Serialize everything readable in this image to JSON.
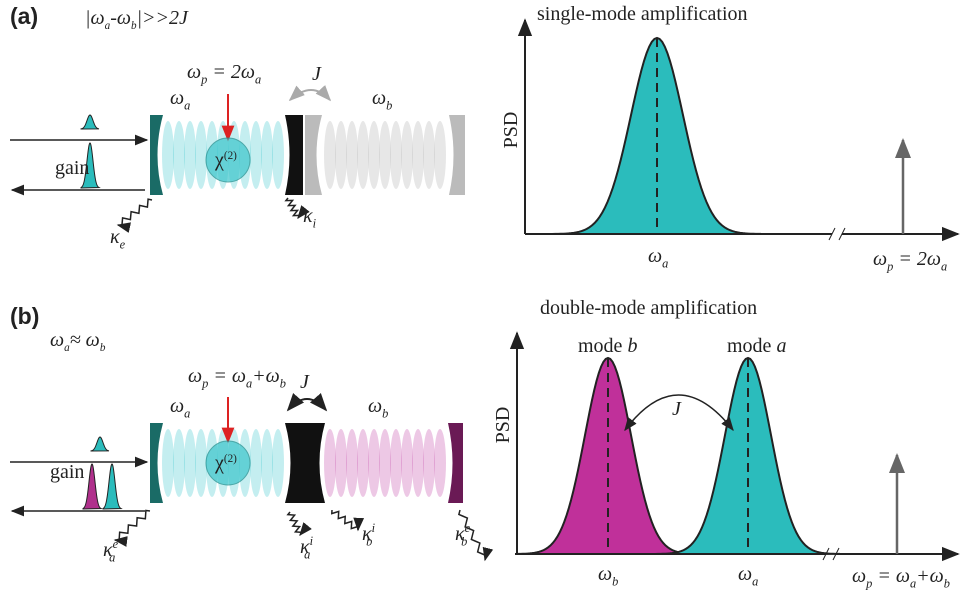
{
  "panel_a": {
    "label": "(a)",
    "condition": [
      {
        "text": "|ω",
        "sub": "a"
      },
      {
        "text": "-ω",
        "sub": "b"
      },
      "|>>2J"
    ],
    "pump": [
      {
        "text": "ω",
        "sub": "p"
      },
      {
        "text": " = 2ω",
        "sub": "a"
      }
    ],
    "coupling": "J",
    "mode_a": {
      "text": "ω",
      "sub": "a"
    },
    "mode_b": {
      "text": "ω",
      "sub": "b"
    },
    "nonlinearity": {
      "text": "χ",
      "sup": "(2)"
    },
    "gain": "gain",
    "loss_external": {
      "text": "κ",
      "sub": "e"
    },
    "loss_internal": {
      "text": "κ",
      "sub": "i"
    },
    "plot": {
      "title": "single-mode amplification",
      "y_label": "PSD",
      "peak_label": {
        "text": "ω",
        "sub": "a"
      },
      "pump_label": [
        {
          "text": "ω",
          "sub": "p"
        },
        {
          "text": " = 2ω",
          "sub": "a"
        }
      ]
    }
  },
  "panel_b": {
    "label": "(b)",
    "condition": [
      {
        "text": "ω",
        "sub": "a"
      },
      {
        "text": "≈ ω",
        "sub": "b"
      }
    ],
    "pump": [
      {
        "text": "ω",
        "sub": "p"
      },
      {
        "text": " = ω",
        "sub": "a"
      },
      {
        "text": "+ω",
        "sub": "b"
      }
    ],
    "coupling": "J",
    "mode_a": {
      "text": "ω",
      "sub": "a"
    },
    "mode_b": {
      "text": "ω",
      "sub": "b"
    },
    "nonlinearity": {
      "text": "χ",
      "sup": "(2)"
    },
    "gain": "gain",
    "loss_a_external": {
      "text": "κ",
      "sup": "e",
      "sub": "a"
    },
    "loss_a_internal": {
      "text": "κ",
      "sup": "i",
      "sub": "a"
    },
    "loss_b_internal": {
      "text": "κ",
      "sup": "i",
      "sub": "b"
    },
    "loss_b_external": {
      "text": "κ",
      "sup": "e",
      "sub": "b"
    },
    "plot": {
      "title": "double-mode amplification",
      "y_label": "PSD",
      "peak_b_title": [
        {
          "text": "mode "
        },
        {
          "text": "b"
        }
      ],
      "peak_a_title": [
        {
          "text": "mode "
        },
        {
          "text": "a"
        }
      ],
      "coupling": "J",
      "peak_b_label": {
        "text": "ω",
        "sub": "b"
      },
      "peak_a_label": {
        "text": "ω",
        "sub": "a"
      },
      "pump_label": [
        {
          "text": "ω",
          "sub": "p"
        },
        {
          "text": " = ω",
          "sub": "a"
        },
        {
          "text": "+ω",
          "sub": "b"
        }
      ]
    }
  }
}
